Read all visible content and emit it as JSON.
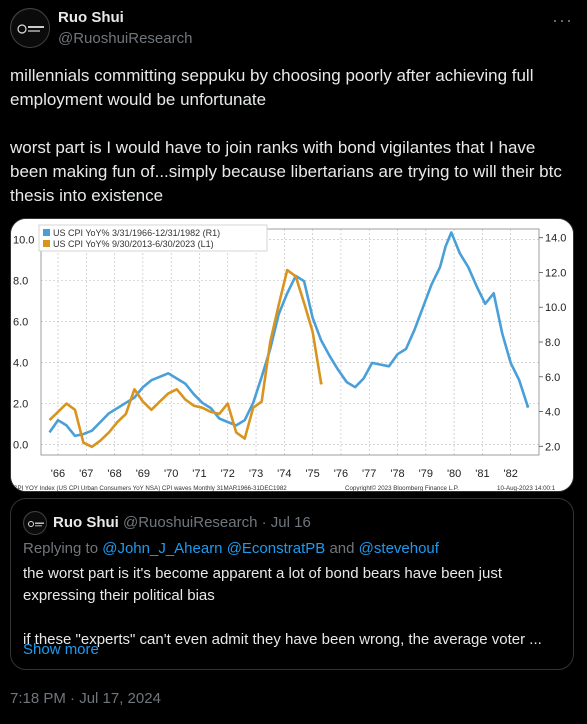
{
  "author": {
    "display_name": "Ruo Shui",
    "handle": "@RuoshuiResearch",
    "more_icon": "ellipsis-icon"
  },
  "tweet": {
    "paragraph1": "millennials committing seppuku by choosing poorly after achieving full employment would be unfortunate",
    "paragraph2": "worst part is I would have to join ranks with bond vigilantes that I have been making fun of...simply because libertarians are trying to will their btc thesis into existence",
    "timestamp": "7:18 PM · Jul 17, 2024"
  },
  "chart_data": {
    "type": "line",
    "title": "",
    "legend": [
      "US CPI YoY% 3/31/1966-12/31/1982 (R1)",
      "US CPI YoY% 9/30/2013-6/30/2023 (L1)"
    ],
    "legend_position": "top-left",
    "x_ticks": [
      "'66",
      "'67",
      "'68",
      "'69",
      "'70",
      "'71",
      "'72",
      "'73",
      "'74",
      "'75",
      "'76",
      "'77",
      "'78",
      "'79",
      "'80",
      "'81",
      "'82"
    ],
    "left_axis": {
      "ticks": [
        "10.0",
        "8.0",
        "6.0",
        "4.0",
        "2.0",
        "0.0"
      ],
      "range": [
        -0.5,
        10.5
      ]
    },
    "right_axis": {
      "ticks": [
        "14.0",
        "12.0",
        "10.0",
        "8.0",
        "6.0",
        "4.0",
        "2.0"
      ],
      "range": [
        1.5,
        14.5
      ]
    },
    "grid": true,
    "footer_left": "CPI YOY Index (US CPI Urban Consumers YoY NSA) CPI waves  Monthly 31MAR1966-31DEC1982",
    "footer_mid": "Copyright© 2023 Bloomberg Finance L.P.",
    "footer_right": "10-Aug-2023 14:00:1",
    "series": [
      {
        "name": "US CPI YoY% 3/31/1966-12/31/1982 (R1)",
        "color": "#4a9fd9",
        "axis": "right",
        "x": [
          1966.0,
          1966.3,
          1966.6,
          1966.9,
          1967.2,
          1967.5,
          1967.8,
          1968.1,
          1968.4,
          1968.7,
          1969.0,
          1969.3,
          1969.6,
          1969.9,
          1970.2,
          1970.5,
          1970.8,
          1971.1,
          1971.4,
          1971.7,
          1972.0,
          1972.3,
          1972.6,
          1972.9,
          1973.2,
          1973.5,
          1973.8,
          1974.1,
          1974.4,
          1974.7,
          1975.0,
          1975.3,
          1975.6,
          1975.9,
          1976.2,
          1976.5,
          1976.8,
          1977.1,
          1977.4,
          1977.7,
          1978.0,
          1978.3,
          1978.6,
          1978.9,
          1979.2,
          1979.5,
          1979.8,
          1980.0,
          1980.2,
          1980.5,
          1980.8,
          1981.1,
          1981.4,
          1981.7,
          1982.0,
          1982.3,
          1982.6,
          1982.9
        ],
        "y": [
          2.8,
          3.5,
          3.2,
          2.6,
          2.7,
          2.9,
          3.4,
          3.9,
          4.2,
          4.5,
          4.8,
          5.4,
          5.8,
          6.0,
          6.2,
          5.9,
          5.6,
          5.0,
          4.5,
          4.2,
          3.6,
          3.4,
          3.2,
          3.5,
          4.5,
          6.0,
          7.6,
          9.6,
          10.8,
          11.8,
          11.5,
          9.4,
          8.1,
          7.2,
          6.4,
          5.7,
          5.4,
          5.9,
          6.8,
          6.7,
          6.6,
          7.3,
          7.6,
          8.7,
          10.0,
          11.3,
          12.3,
          13.5,
          14.3,
          13.1,
          12.3,
          11.2,
          10.2,
          10.8,
          8.5,
          6.8,
          5.8,
          4.3
        ]
      },
      {
        "name": "US CPI YoY% 9/30/2013-6/30/2023 (L1)",
        "color": "#d8941e",
        "axis": "left",
        "x": [
          1966.0,
          1966.3,
          1966.6,
          1966.9,
          1967.2,
          1967.5,
          1967.8,
          1968.1,
          1968.4,
          1968.7,
          1969.0,
          1969.3,
          1969.6,
          1969.9,
          1970.2,
          1970.5,
          1970.8,
          1971.1,
          1971.4,
          1971.7,
          1972.0,
          1972.3,
          1972.6,
          1972.9,
          1973.2,
          1973.5,
          1973.8,
          1974.1,
          1974.4,
          1974.7,
          1975.0,
          1975.3,
          1975.6
        ],
        "y": [
          1.2,
          1.6,
          2.0,
          1.7,
          0.1,
          -0.1,
          0.2,
          0.6,
          1.1,
          1.5,
          2.7,
          2.1,
          1.7,
          2.1,
          2.5,
          2.7,
          2.2,
          1.9,
          1.8,
          1.6,
          1.5,
          2.0,
          0.6,
          0.3,
          1.8,
          2.1,
          5.0,
          6.8,
          8.5,
          8.2,
          6.9,
          5.5,
          3.0
        ]
      }
    ]
  },
  "quote": {
    "display_name": "Ruo Shui",
    "handle": "@RuoshuiResearch",
    "date": "· Jul 16",
    "reply_prefix": "Replying to",
    "reply_users": "@John_J_Ahearn @EconstratPB",
    "reply_and": "and",
    "reply_last": "@stevehouf",
    "paragraph1": "the worst part is it's become apparent a lot of bond bears have been just expressing their political bias",
    "paragraph2": "if these \"experts\" can't even admit they have been wrong, the average voter ...",
    "show_more": "Show more"
  }
}
